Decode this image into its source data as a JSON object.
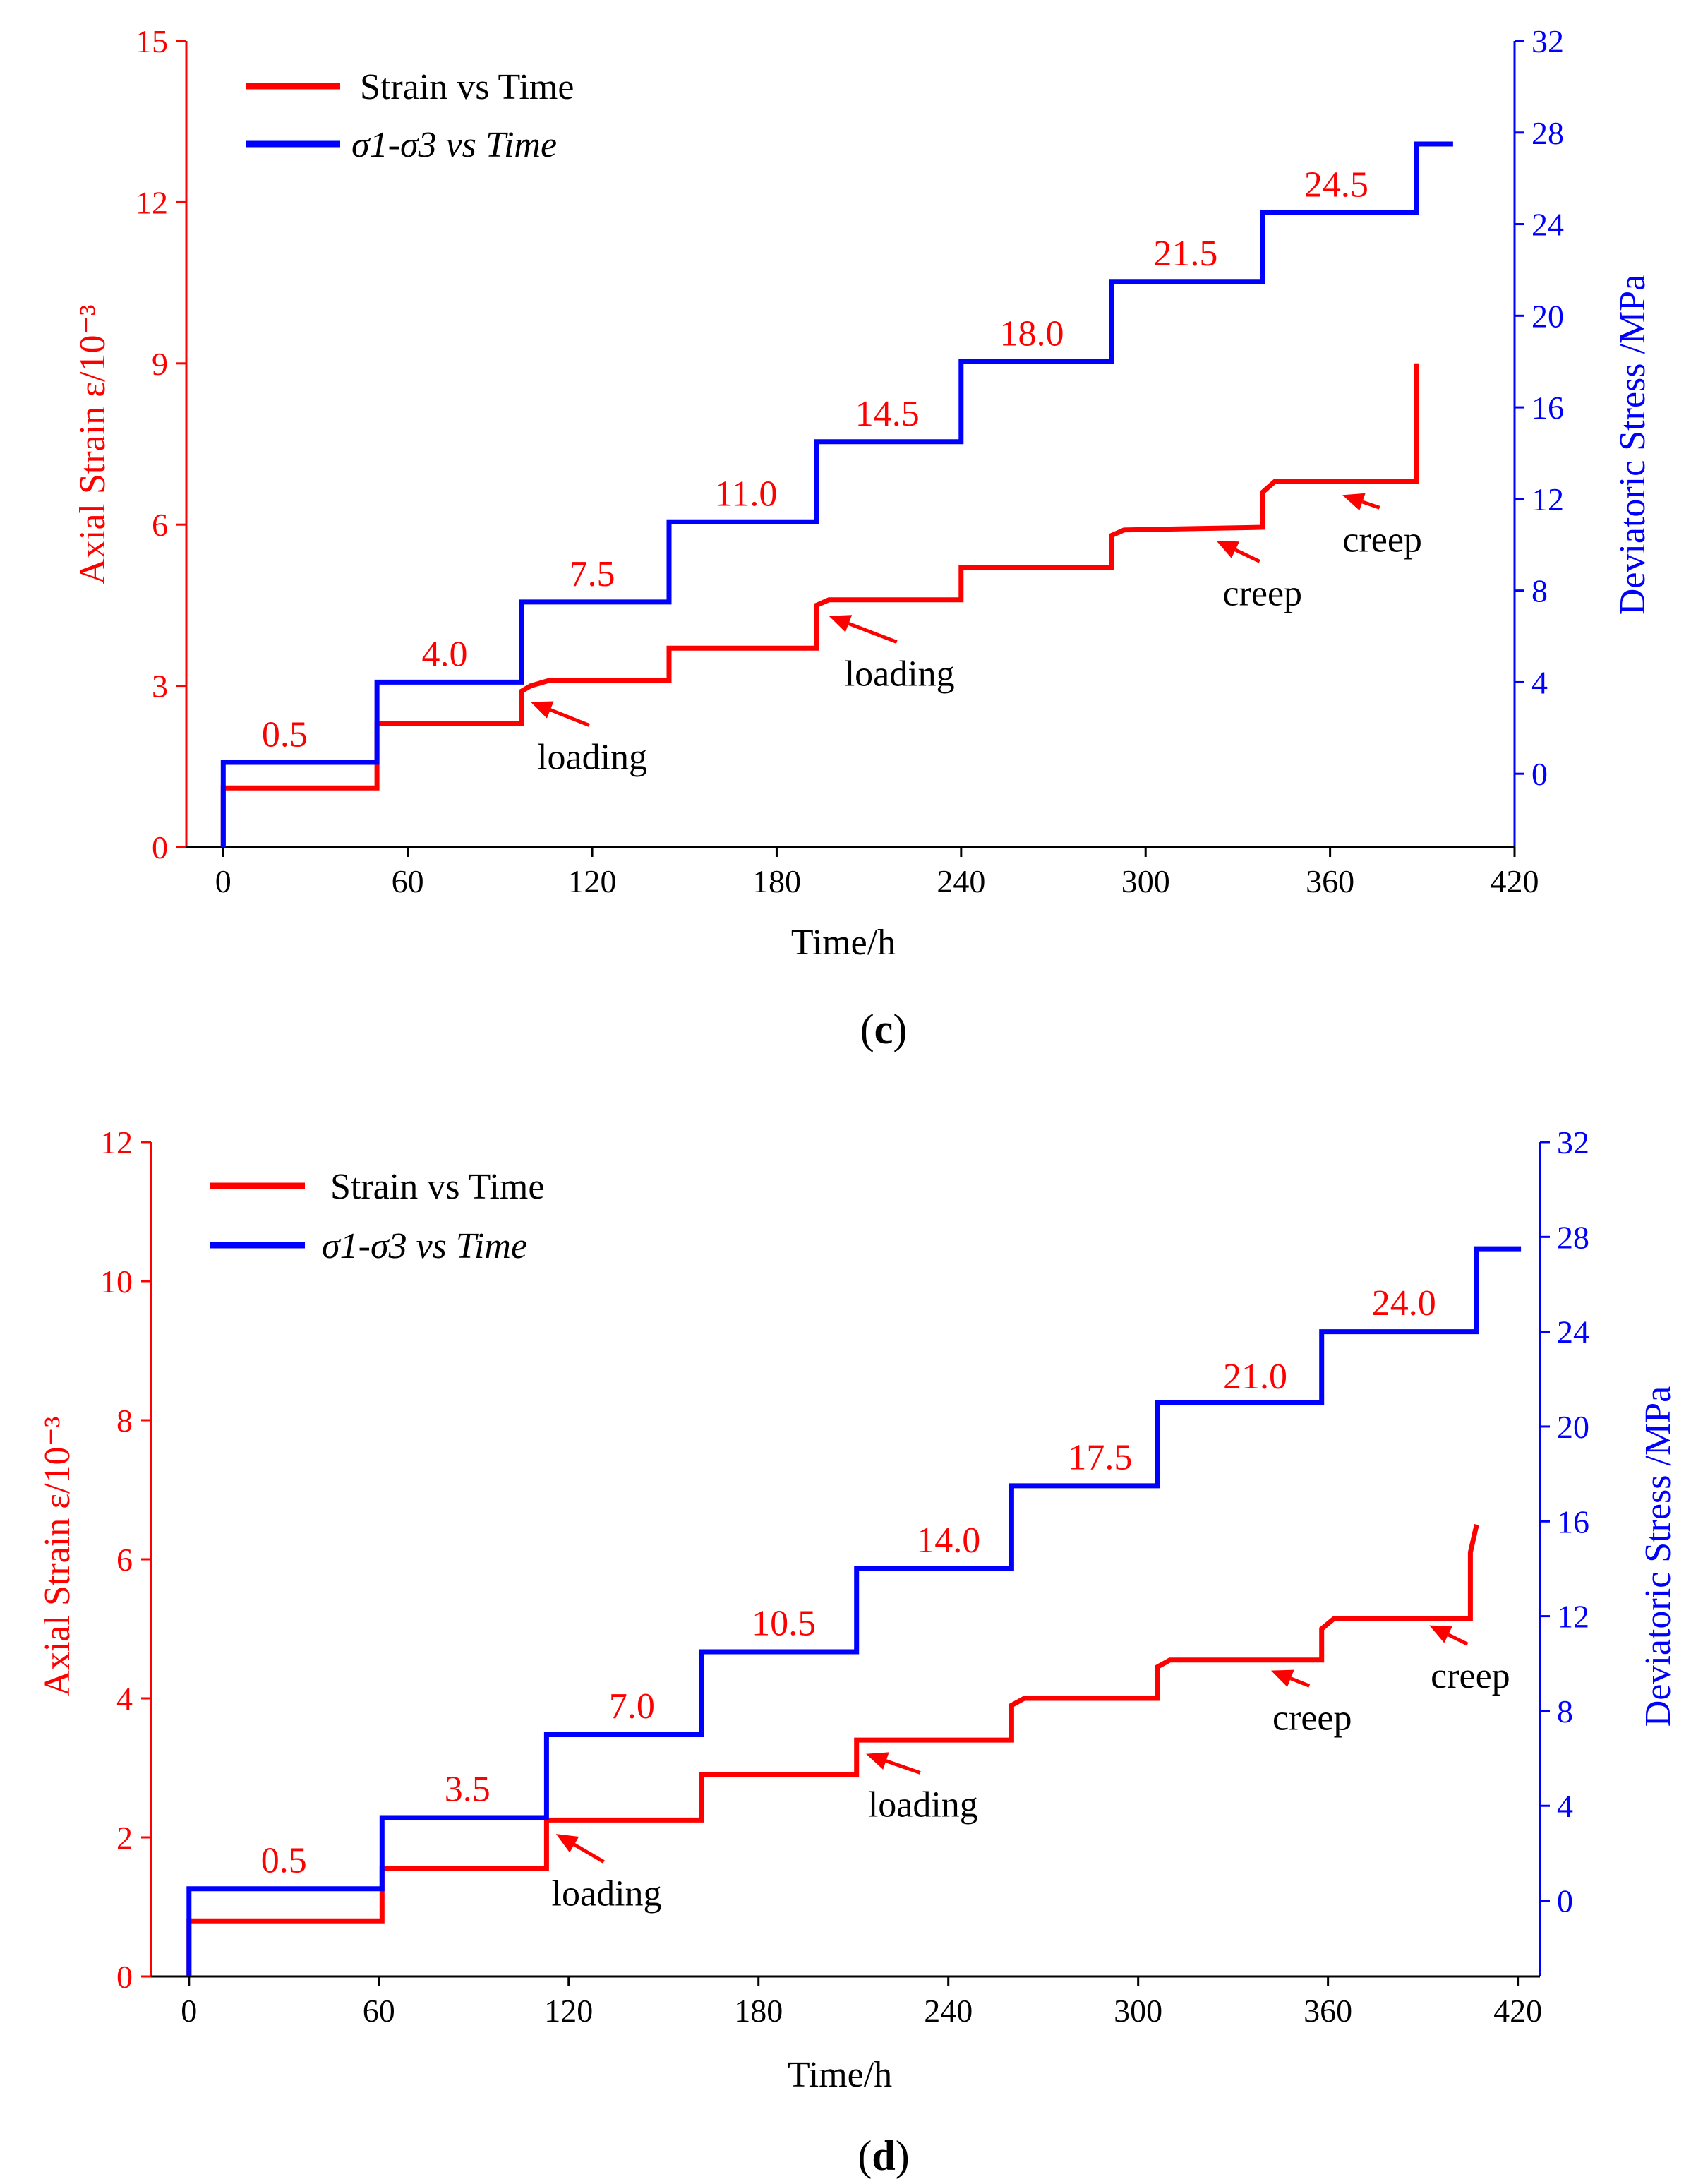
{
  "colors": {
    "strain": "#ff0000",
    "stress": "#0000ff",
    "axis": "#000000"
  },
  "chart_data": [
    {
      "type": "line",
      "panel_label": "c",
      "xlabel": "Time/h",
      "x_ticks": [
        "0",
        "60",
        "120",
        "180",
        "240",
        "300",
        "360",
        "420"
      ],
      "xlim": [
        -12,
        420
      ],
      "ylabel_left": "Axial Strain ε/10⁻³",
      "y_left_ticks": [
        "0",
        "3",
        "6",
        "9",
        "12",
        "15"
      ],
      "ylim_left": [
        0,
        15
      ],
      "ylabel_right": "Deviatoric Stress /MPa",
      "y_right_ticks": [
        "0",
        "4",
        "8",
        "12",
        "16",
        "20",
        "24",
        "28",
        "32"
      ],
      "ylim_right": [
        -3.2,
        32
      ],
      "legend": [
        {
          "label": "Strain vs Time",
          "series": "strain"
        },
        {
          "label": "σ1-σ3 vs Time",
          "series": "stress"
        }
      ],
      "series": [
        {
          "name": "Strain vs Time",
          "key": "strain",
          "axis": "left",
          "x": [
            0,
            0,
            50,
            50,
            97,
            97,
            100,
            106,
            145,
            145,
            193,
            193,
            197,
            240,
            240,
            289,
            289,
            293,
            338,
            338,
            342,
            388,
            388
          ],
          "y": [
            0,
            1.1,
            1.1,
            2.3,
            2.3,
            2.9,
            3.0,
            3.1,
            3.1,
            3.7,
            3.7,
            4.5,
            4.6,
            4.6,
            5.2,
            5.2,
            5.8,
            5.9,
            5.95,
            6.6,
            6.8,
            6.8,
            9.0
          ]
        },
        {
          "name": "σ1-σ3 vs Time",
          "key": "stress",
          "axis": "right",
          "x": [
            0,
            0,
            50,
            50,
            97,
            97,
            145,
            145,
            193,
            193,
            240,
            240,
            289,
            289,
            338,
            338,
            388,
            388,
            400
          ],
          "y": [
            -3.2,
            0.5,
            0.5,
            4.0,
            4.0,
            7.5,
            7.5,
            11.0,
            11.0,
            14.5,
            14.5,
            18.0,
            18.0,
            21.5,
            21.5,
            24.5,
            24.5,
            27.5,
            27.5
          ]
        }
      ],
      "step_labels": [
        {
          "text": "0.5",
          "x": 20,
          "y": 1.2
        },
        {
          "text": "4.0",
          "x": 72,
          "y": 4.7
        },
        {
          "text": "7.5",
          "x": 120,
          "y": 8.2
        },
        {
          "text": "11.0",
          "x": 170,
          "y": 11.7
        },
        {
          "text": "14.5",
          "x": 216,
          "y": 15.2
        },
        {
          "text": "18.0",
          "x": 263,
          "y": 18.7
        },
        {
          "text": "21.5",
          "x": 313,
          "y": 22.2
        },
        {
          "text": "24.5",
          "x": 362,
          "y": 25.2
        }
      ],
      "annotations": [
        {
          "text": "loading",
          "x_label": 120,
          "y_label": 1.45,
          "x_tip": 100,
          "y_tip": 2.7
        },
        {
          "text": "loading",
          "x_label": 220,
          "y_label": 3.0,
          "x_tip": 197,
          "y_tip": 4.3
        },
        {
          "text": "creep",
          "x_label": 338,
          "y_label": 4.5,
          "x_tip": 323,
          "y_tip": 5.7
        },
        {
          "text": "creep",
          "x_label": 377,
          "y_label": 5.5,
          "x_tip": 364,
          "y_tip": 6.55
        }
      ]
    },
    {
      "type": "line",
      "panel_label": "d",
      "xlabel": "Time/h",
      "x_ticks": [
        "0",
        "60",
        "120",
        "180",
        "240",
        "300",
        "360",
        "420"
      ],
      "xlim": [
        -12,
        427
      ],
      "ylabel_left": "Axial Strain ε/10⁻³",
      "y_left_ticks": [
        "0",
        "2",
        "4",
        "6",
        "8",
        "10",
        "12"
      ],
      "ylim_left": [
        0,
        12
      ],
      "ylabel_right": "Deviatoric Stress /MPa",
      "y_right_ticks": [
        "0",
        "4",
        "8",
        "12",
        "16",
        "20",
        "24",
        "28",
        "32"
      ],
      "ylim_right": [
        -3.2,
        32
      ],
      "legend": [
        {
          "label": "Strain vs Time",
          "series": "strain"
        },
        {
          "label": "σ1-σ3 vs Time",
          "series": "stress"
        }
      ],
      "series": [
        {
          "name": "Strain vs Time",
          "key": "strain",
          "axis": "left",
          "x": [
            0,
            0,
            61,
            61,
            113,
            113,
            162,
            162,
            211,
            211,
            260,
            260,
            264,
            306,
            306,
            310,
            358,
            358,
            362,
            405,
            405,
            407
          ],
          "y": [
            0,
            0.8,
            0.8,
            1.55,
            1.55,
            2.25,
            2.25,
            2.9,
            2.9,
            3.4,
            3.4,
            3.9,
            4.0,
            4.0,
            4.45,
            4.55,
            4.55,
            5.0,
            5.15,
            5.15,
            6.1,
            6.5
          ]
        },
        {
          "name": "σ1-σ3 vs Time",
          "key": "stress",
          "axis": "right",
          "x": [
            0,
            0,
            61,
            61,
            113,
            113,
            162,
            162,
            211,
            211,
            260,
            260,
            306,
            306,
            358,
            358,
            407,
            407,
            421
          ],
          "y": [
            -3.2,
            0.5,
            0.5,
            3.5,
            3.5,
            7.0,
            7.0,
            10.5,
            10.5,
            14.0,
            14.0,
            17.5,
            17.5,
            21.0,
            21.0,
            24.0,
            24.0,
            27.5,
            27.5
          ]
        }
      ],
      "step_labels": [
        {
          "text": "0.5",
          "x": 30,
          "y": 1.2
        },
        {
          "text": "3.5",
          "x": 88,
          "y": 4.2
        },
        {
          "text": "7.0",
          "x": 140,
          "y": 7.7
        },
        {
          "text": "10.5",
          "x": 188,
          "y": 11.2
        },
        {
          "text": "14.0",
          "x": 240,
          "y": 14.7
        },
        {
          "text": "17.5",
          "x": 288,
          "y": 18.2
        },
        {
          "text": "21.0",
          "x": 337,
          "y": 21.6
        },
        {
          "text": "24.0",
          "x": 384,
          "y": 24.7
        }
      ],
      "annotations": [
        {
          "text": "loading",
          "x_label": 132,
          "y_label": 1.02,
          "x_tip": 116,
          "y_tip": 2.05
        },
        {
          "text": "loading",
          "x_label": 232,
          "y_label": 2.3,
          "x_tip": 214,
          "y_tip": 3.2
        },
        {
          "text": "creep",
          "x_label": 355,
          "y_label": 3.55,
          "x_tip": 342,
          "y_tip": 4.4
        },
        {
          "text": "creep",
          "x_label": 405,
          "y_label": 4.15,
          "x_tip": 392,
          "y_tip": 5.05
        }
      ]
    }
  ]
}
